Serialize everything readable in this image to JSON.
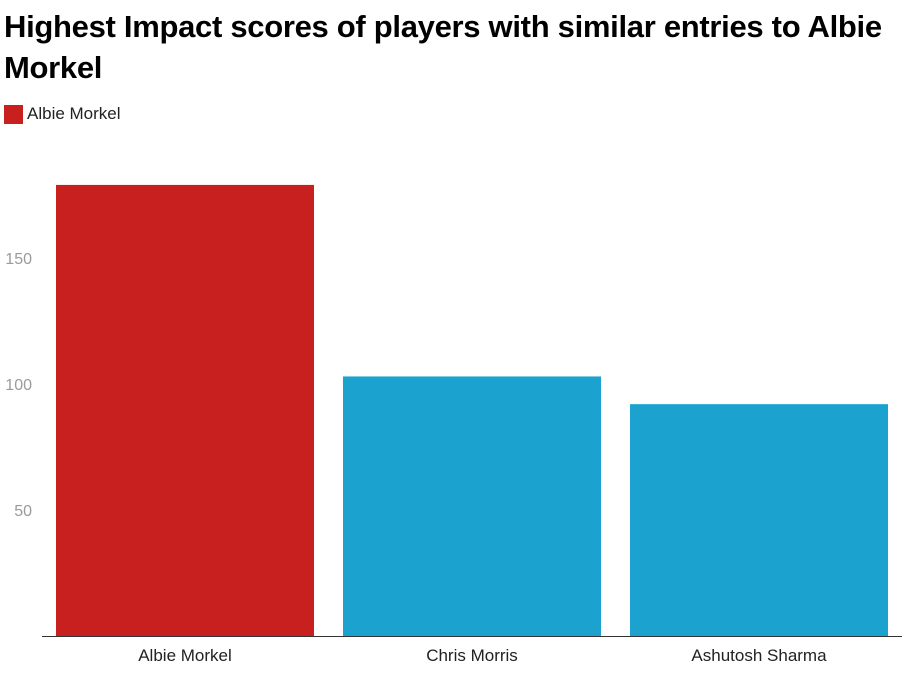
{
  "chart_data": {
    "type": "bar",
    "title": "Highest Impact scores of players with similar entries to Albie Morkel",
    "categories": [
      "Albie Morkel",
      "Chris Morris",
      "Ashutosh Sharma"
    ],
    "values": [
      179,
      103,
      92
    ],
    "bar_colors": [
      "#c8201e",
      "#1ba2cf",
      "#1ba2cf"
    ],
    "legend": [
      {
        "label": "Albie Morkel",
        "color": "#c8201e"
      }
    ],
    "legend_position": "top-left",
    "yticks": [
      50,
      100,
      150
    ],
    "ylim": [
      0,
      200
    ],
    "xlabel": "",
    "ylabel": "",
    "grid": false
  }
}
